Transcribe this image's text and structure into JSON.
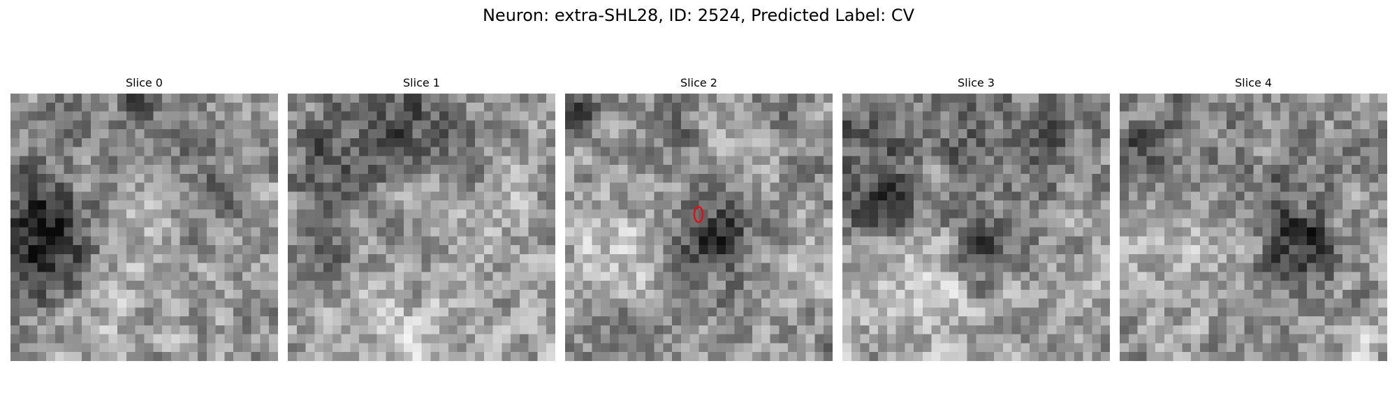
{
  "figure": {
    "title": "Neuron: extra-SHL28, ID: 2524, Predicted Label: CV"
  },
  "panels": [
    {
      "title": "Slice 0",
      "image": "grayscale-microscopy-patch"
    },
    {
      "title": "Slice 1",
      "image": "grayscale-microscopy-patch"
    },
    {
      "title": "Slice 2",
      "image": "grayscale-microscopy-patch",
      "marker": "neuron-location-ellipse"
    },
    {
      "title": "Slice 3",
      "image": "grayscale-microscopy-patch"
    },
    {
      "title": "Slice 4",
      "image": "grayscale-microscopy-patch"
    }
  ],
  "colors": {
    "background": "#ffffff",
    "marker": "#e0101a"
  }
}
